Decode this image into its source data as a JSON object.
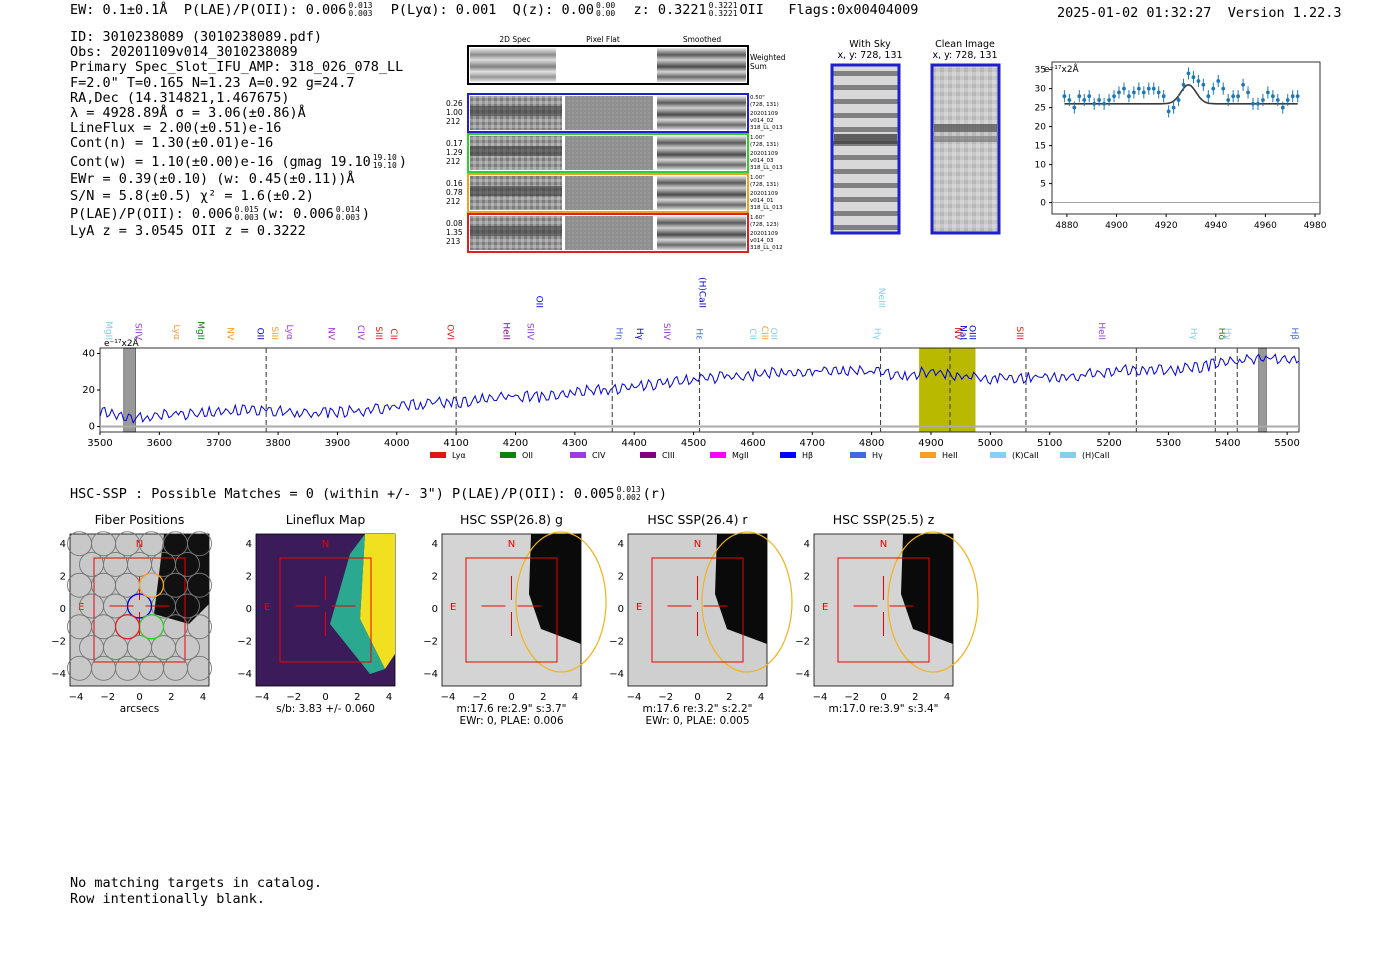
{
  "header": {
    "ew": "EW: 0.1±0.1Å",
    "plae_label": "P(LAE)/P(OII): 0.006",
    "plae_hi": "0.013",
    "plae_lo": "0.003",
    "plya": "P(Lyα): 0.001",
    "qz_label": "Q(z): 0.00",
    "qz_hi": "0.00",
    "qz_lo": "0.00",
    "z_label": "z: 0.3221",
    "z_hi": "0.3221",
    "z_lo": "0.3221",
    "z_line": "OII",
    "flags": "Flags:0x00404009",
    "timestamp": "2025-01-02 01:32:27",
    "version": "Version 1.22.3"
  },
  "info": {
    "id": "ID: 3010238089 (3010238089.pdf)",
    "obs": "Obs: 20201109v014_3010238089",
    "primary": "Primary Spec_Slot_IFU_AMP: 318_026_078_LL",
    "params": "F=2.0\"  T=0.165  N=1.23  A=0.92  g=24.7",
    "radec": "RA,Dec (14.314821,1.467675)",
    "lambda": "λ = 4928.89Å   σ = 3.06(±0.86)Å",
    "lineflux": "LineFlux = 2.00(±0.51)e-16",
    "contn": "Cont(n) = 1.30(±0.01)e-16",
    "contw": "Cont(w) = 1.10(±0.00)e-16 (gmag 19.10",
    "contw_hi": "19.10",
    "contw_lo": "19.10",
    "contw_end": ")",
    "ewr": "EWr = 0.39(±0.10) (w: 0.45(±0.11))Å",
    "sn": "S/N = 5.8(±0.5)  χ² = 1.6(±0.2)",
    "plae": "P(LAE)/P(OII): 0.006",
    "plae_hi": "0.015",
    "plae_lo": "0.003",
    "plae_w": "(w: 0.006",
    "plae_w_hi": "0.014",
    "plae_w_lo": "0.003",
    "plae_w_end": ")",
    "lyaz": "LyA z = 3.0545   OII z = 0.3222"
  },
  "cutouts": {
    "col1": "2D Spec",
    "col2": "Pixel Flat",
    "col3": "Smoothed",
    "weighted": "Weighted",
    "sum": "Sum",
    "rows": [
      {
        "a": "0.26",
        "b": "1.00",
        "c": "212",
        "r1": "0.50\"",
        "r2": "(728, 131)",
        "r3": "20201109",
        "r4": "v014_02",
        "r5": "318_LL_013",
        "color": "#1f1fd0"
      },
      {
        "a": "0.17",
        "b": "1.29",
        "c": "212",
        "r1": "1.00\"",
        "r2": "(728, 131)",
        "r3": "20201109",
        "r4": "v014_03",
        "r5": "318_LL_013",
        "color": "#2bd02b"
      },
      {
        "a": "0.16",
        "b": "0.78",
        "c": "212",
        "r1": "1.00\"",
        "r2": "(728, 131)",
        "r3": "20201109",
        "r4": "v014_01",
        "r5": "318_LL_013",
        "color": "#f0a020"
      },
      {
        "a": "0.08",
        "b": "1.35",
        "c": "213",
        "r1": "1.60\"",
        "r2": "(728, 123)",
        "r3": "20201109",
        "r4": "v014_03",
        "r5": "318_LL_012",
        "color": "#e02020"
      }
    ]
  },
  "sky": {
    "with_title": "With Sky",
    "with_sub": "x, y: 728, 131",
    "clean_title": "Clean Image",
    "clean_sub": "x, y: 728, 131"
  },
  "zoom_chart": {
    "unit": "e⁻¹⁷x2Å"
  },
  "chart_data": [
    {
      "type": "scatter",
      "title": "",
      "ylabel": "e⁻¹⁷x2Å",
      "xlim": [
        4874,
        4982
      ],
      "ylim": [
        -3,
        37
      ],
      "xticks": [
        4880,
        4900,
        4920,
        4940,
        4960,
        4980
      ],
      "yticks": [
        0,
        5,
        10,
        15,
        20,
        25,
        30,
        35
      ],
      "points_x": [
        4879,
        4881,
        4883,
        4885,
        4887,
        4889,
        4891,
        4893,
        4895,
        4897,
        4899,
        4901,
        4903,
        4905,
        4907,
        4909,
        4911,
        4913,
        4915,
        4917,
        4919,
        4921,
        4923,
        4925,
        4927,
        4929,
        4931,
        4933,
        4935,
        4937,
        4939,
        4941,
        4943,
        4945,
        4947,
        4949,
        4951,
        4953,
        4955,
        4957,
        4959,
        4961,
        4963,
        4965,
        4967,
        4969,
        4971,
        4973
      ],
      "points_y": [
        28,
        27,
        25,
        28,
        27,
        28,
        26,
        27,
        26,
        27,
        28,
        29,
        30,
        28,
        29,
        30,
        29,
        30,
        30,
        29,
        28,
        24,
        25,
        27,
        31,
        34,
        33,
        32,
        31,
        28,
        30,
        32,
        30,
        27,
        28,
        28,
        31,
        29,
        26,
        26,
        27,
        29,
        28,
        27,
        25,
        27,
        28,
        28
      ],
      "fit": "gaussian peak at 4929 Å, continuum ~26"
    },
    {
      "type": "line",
      "ylabel": "e⁻¹⁷x2Å",
      "xlim": [
        3500,
        5520
      ],
      "ylim": [
        -3,
        43
      ],
      "xticks": [
        3500,
        3600,
        3700,
        3800,
        3900,
        4000,
        4100,
        4200,
        4300,
        4400,
        4500,
        4600,
        4700,
        4800,
        4900,
        5000,
        5100,
        5200,
        5300,
        5400,
        5500
      ],
      "yticks": [
        0,
        20,
        40
      ],
      "x": [
        3500,
        3550,
        3600,
        3650,
        3700,
        3750,
        3800,
        3850,
        3900,
        3950,
        4000,
        4050,
        4100,
        4150,
        4200,
        4250,
        4300,
        4350,
        4400,
        4450,
        4500,
        4550,
        4600,
        4650,
        4700,
        4750,
        4800,
        4850,
        4900,
        4950,
        5000,
        5050,
        5100,
        5150,
        5200,
        5250,
        5300,
        5350,
        5400,
        5450,
        5500,
        5520
      ],
      "y": [
        8,
        5,
        6,
        7,
        8,
        9,
        9,
        7,
        8,
        9,
        11,
        13,
        13,
        15,
        17,
        16,
        19,
        20,
        22,
        23,
        26,
        27,
        28,
        30,
        30,
        31,
        30,
        28,
        30,
        28,
        26,
        27,
        27,
        28,
        30,
        31,
        31,
        32,
        36,
        37,
        37,
        37
      ],
      "highlight_band": [
        4880,
        4975
      ],
      "dashed_lines": [
        3780,
        4100,
        4363,
        4510,
        4815,
        4932,
        5060,
        5246,
        5379,
        5416
      ],
      "shaded_bands": [
        [
          3540,
          3560
        ],
        [
          5452,
          5465
        ]
      ],
      "line_labels": [
        "MgII",
        "SIIV",
        "Lyα",
        "MgII",
        "NV",
        "OII",
        "SIII",
        "Lyα",
        "NV",
        "CIV",
        "SIII",
        "CII",
        "OVI",
        "HeII",
        "SIIV",
        "OII",
        "Hη",
        "Hγ",
        "SIIV",
        "Hε",
        "(H)CaII",
        "CII",
        "CIII",
        "OII",
        "Hγ",
        "NeIII",
        "NV",
        "NaI",
        "OIII",
        "SIII",
        "HeII",
        "Hγ",
        "Hδ",
        "Hγ",
        "Hβ"
      ],
      "legend": [
        "Lyα",
        "OII",
        "CIV",
        "CIII",
        "MgII",
        "Hβ",
        "Hγ",
        "HeII",
        "(K)CaII",
        "(H)CaII"
      ],
      "legend_colors": [
        "#e01515",
        "#108010",
        "#9b3be0",
        "#800080",
        "#ff00ff",
        "#0000ff",
        "#4169e1",
        "#f4a020",
        "#87cefa",
        "#87ceeb"
      ]
    }
  ],
  "hsc": {
    "title": "HSC-SSP : Possible Matches = 0 (within +/- 3\")  P(LAE)/P(OII): 0.005",
    "plae_hi": "0.013",
    "plae_lo": "0.002",
    "band": "(r)",
    "panels": [
      {
        "title": "Fiber Positions",
        "cap1": "arcsecs",
        "cap2": ""
      },
      {
        "title": "Lineflux Map",
        "cap1": "s/b: 3.83 +/- 0.060",
        "cap2": ""
      },
      {
        "title": "HSC SSP(26.8) g",
        "cap1": "m:17.6  re:2.9\"  s:3.7\"",
        "cap2": "EWr: 0, PLAE: 0.006"
      },
      {
        "title": "HSC SSP(26.4) r",
        "cap1": "m:17.6  re:3.2\"  s:2.2\"",
        "cap2": "EWr: 0, PLAE: 0.005"
      },
      {
        "title": "HSC SSP(25.5) z",
        "cap1": "m:17.0  re:3.9\"  s:3.4\"",
        "cap2": ""
      }
    ],
    "ticks_x": [
      "−4",
      "−2",
      "0",
      "2",
      "4"
    ],
    "ticks_y": [
      "4",
      "2",
      "0",
      "−2",
      "−4"
    ],
    "north": "N",
    "east": "E"
  },
  "footer": {
    "line1": "No matching targets in catalog.",
    "line2": "Row intentionally blank."
  }
}
